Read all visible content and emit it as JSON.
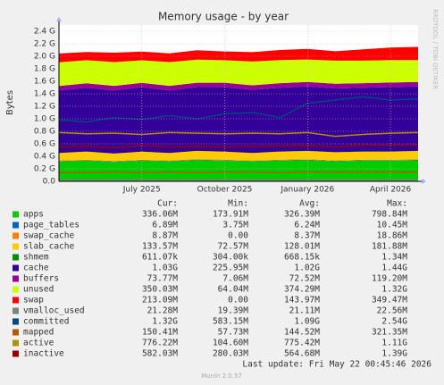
{
  "chart_data": {
    "type": "munin-area",
    "title": "Memory usage - by year",
    "y_label": "Bytes",
    "side_text": "RRDTOOL / TOBI OETIKER",
    "categories": [
      null,
      null,
      null,
      "July 2025",
      null,
      null,
      "October 2025",
      null,
      null,
      "January 2026",
      null,
      null,
      "April 2026",
      null
    ],
    "ylim": [
      0,
      2.5
    ],
    "yticks": [
      {
        "value": 0,
        "label": "0.0"
      },
      {
        "value": 0.2,
        "label": "0.2 G"
      },
      {
        "value": 0.4,
        "label": "0.4 G"
      },
      {
        "value": 0.6,
        "label": "0.6 G"
      },
      {
        "value": 0.8,
        "label": "0.8 G"
      },
      {
        "value": 1.0,
        "label": "1.0 G"
      },
      {
        "value": 1.2,
        "label": "1.2 G"
      },
      {
        "value": 1.4,
        "label": "1.4 G"
      },
      {
        "value": 1.6,
        "label": "1.6 G"
      },
      {
        "value": 1.8,
        "label": "1.8 G"
      },
      {
        "value": 2.0,
        "label": "2.0 G"
      },
      {
        "value": 2.2,
        "label": "2.2 G"
      },
      {
        "value": 2.4,
        "label": "2.4 G"
      }
    ],
    "grid": true,
    "legend_columns": [
      "Cur:",
      "Min:",
      "Avg:",
      "Max:"
    ],
    "series": [
      {
        "name": "apps",
        "color": "#00cc00",
        "kind": "area",
        "cur": "336.06M",
        "min": "173.91M",
        "avg": "326.39M",
        "max": "798.84M",
        "values": [
          0.32,
          0.33,
          0.31,
          0.33,
          0.32,
          0.34,
          0.33,
          0.32,
          0.33,
          0.34,
          0.32,
          0.33,
          0.33,
          0.336
        ]
      },
      {
        "name": "page_tables",
        "color": "#0066b3",
        "kind": "area",
        "cur": "6.89M",
        "min": "3.75M",
        "avg": "6.24M",
        "max": "10.45M",
        "values": [
          0.006,
          0.006,
          0.007,
          0.006,
          0.006,
          0.007,
          0.006,
          0.006,
          0.007,
          0.006,
          0.007,
          0.007,
          0.007,
          0.007
        ]
      },
      {
        "name": "swap_cache",
        "color": "#ff8000",
        "kind": "area",
        "cur": "8.87M",
        "min": "0.00",
        "avg": "8.37M",
        "max": "18.86M",
        "values": [
          0.008,
          0.01,
          0.007,
          0.009,
          0.008,
          0.01,
          0.009,
          0.008,
          0.009,
          0.01,
          0.008,
          0.009,
          0.009,
          0.009
        ]
      },
      {
        "name": "slab_cache",
        "color": "#ffcc00",
        "kind": "area",
        "cur": "133.57M",
        "min": "72.57M",
        "avg": "128.01M",
        "max": "181.88M",
        "values": [
          0.12,
          0.13,
          0.12,
          0.13,
          0.12,
          0.13,
          0.13,
          0.12,
          0.13,
          0.13,
          0.13,
          0.13,
          0.13,
          0.134
        ]
      },
      {
        "name": "shmem",
        "color": "#008f00",
        "kind": "area",
        "cur": "611.07k",
        "min": "304.00k",
        "avg": "668.15k",
        "max": "1.34M",
        "values": [
          0.0006,
          0.0006,
          0.0007,
          0.0006,
          0.0006,
          0.0007,
          0.0006,
          0.0006,
          0.0007,
          0.0006,
          0.0007,
          0.0006,
          0.0006,
          0.0006
        ]
      },
      {
        "name": "cache",
        "color": "#330099",
        "kind": "area",
        "cur": "1.03G",
        "min": "225.95M",
        "avg": "1.02G",
        "max": "1.44G",
        "values": [
          1.0,
          1.02,
          1.01,
          1.03,
          1.0,
          1.02,
          1.03,
          1.01,
          1.02,
          1.03,
          1.02,
          1.02,
          1.03,
          1.03
        ]
      },
      {
        "name": "buffers",
        "color": "#990099",
        "kind": "area",
        "cur": "73.77M",
        "min": "7.06M",
        "avg": "72.52M",
        "max": "119.20M",
        "values": [
          0.07,
          0.07,
          0.072,
          0.07,
          0.073,
          0.07,
          0.072,
          0.071,
          0.073,
          0.072,
          0.074,
          0.073,
          0.074,
          0.074
        ]
      },
      {
        "name": "unused",
        "color": "#ccff00",
        "kind": "area",
        "cur": "350.03M",
        "min": "64.04M",
        "avg": "374.29M",
        "max": "1.32G",
        "values": [
          0.38,
          0.37,
          0.38,
          0.36,
          0.38,
          0.37,
          0.36,
          0.38,
          0.37,
          0.36,
          0.37,
          0.36,
          0.36,
          0.35
        ]
      },
      {
        "name": "swap",
        "color": "#ff0000",
        "kind": "area",
        "cur": "213.09M",
        "min": "0.00",
        "avg": "143.97M",
        "max": "349.47M",
        "values": [
          0.14,
          0.13,
          0.15,
          0.14,
          0.14,
          0.15,
          0.14,
          0.15,
          0.16,
          0.17,
          0.15,
          0.18,
          0.2,
          0.21
        ]
      },
      {
        "name": "vmalloc_used",
        "color": "#808080",
        "kind": "line",
        "cur": "21.28M",
        "min": "19.39M",
        "avg": "21.11M",
        "max": "22.56M",
        "values": [
          0.021,
          0.021,
          0.021,
          0.021,
          0.021,
          0.021,
          0.021,
          0.021,
          0.021,
          0.021,
          0.021,
          0.021,
          0.021,
          0.021
        ]
      },
      {
        "name": "committed",
        "color": "#00487d",
        "kind": "line",
        "cur": "1.32G",
        "min": "583.15M",
        "avg": "1.09G",
        "max": "2.54G",
        "values": [
          0.98,
          0.95,
          1.02,
          0.99,
          1.05,
          1.0,
          1.08,
          1.1,
          1.02,
          1.25,
          1.3,
          1.35,
          1.3,
          1.32
        ]
      },
      {
        "name": "mapped",
        "color": "#b35a00",
        "kind": "line",
        "cur": "150.41M",
        "min": "57.73M",
        "avg": "144.52M",
        "max": "321.35M",
        "values": [
          0.14,
          0.14,
          0.15,
          0.14,
          0.15,
          0.14,
          0.15,
          0.15,
          0.14,
          0.15,
          0.15,
          0.15,
          0.15,
          0.15
        ]
      },
      {
        "name": "active",
        "color": "#b38f00",
        "kind": "line",
        "cur": "776.22M",
        "min": "104.60M",
        "avg": "775.42M",
        "max": "1.11G",
        "values": [
          0.78,
          0.76,
          0.77,
          0.75,
          0.78,
          0.77,
          0.76,
          0.77,
          0.76,
          0.78,
          0.72,
          0.75,
          0.77,
          0.78
        ]
      },
      {
        "name": "inactive",
        "color": "#990000",
        "kind": "line",
        "cur": "582.03M",
        "min": "280.03M",
        "avg": "564.68M",
        "max": "1.39G",
        "values": [
          0.55,
          0.56,
          0.54,
          0.57,
          0.55,
          0.56,
          0.55,
          0.56,
          0.56,
          0.57,
          0.55,
          0.58,
          0.58,
          0.58
        ]
      }
    ],
    "last_update": "Last update: Fri May 22 00:45:46 2026",
    "footer": "Munin 2.0.57"
  }
}
